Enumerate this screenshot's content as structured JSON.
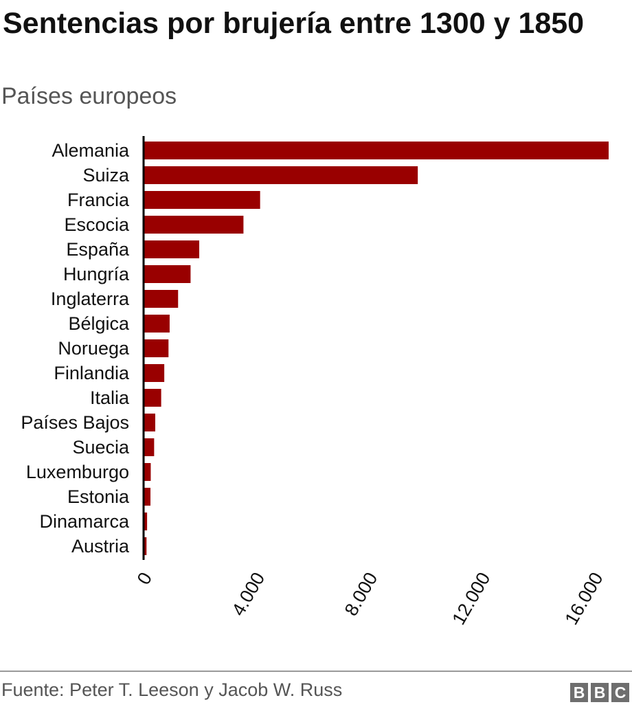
{
  "title": "Sentencias por brujería entre 1300 y 1850",
  "subtitle": "Países europeos",
  "source": "Fuente: Peter T. Leeson y Jacob W. Russ",
  "logo": [
    "B",
    "B",
    "C"
  ],
  "colors": {
    "bar": "#990000",
    "axis": "#000000"
  },
  "chart_data": {
    "type": "bar",
    "orientation": "horizontal",
    "categories": [
      "Alemania",
      "Suiza",
      "Francia",
      "Escocia",
      "España",
      "Hungría",
      "Inglaterra",
      "Bélgica",
      "Noruega",
      "Finlandia",
      "Italia",
      "Países Bajos",
      "Suecia",
      "Luxemburgo",
      "Estonia",
      "Dinamarca",
      "Austria"
    ],
    "values": [
      16474,
      9703,
      4110,
      3519,
      1950,
      1643,
      1200,
      900,
      860,
      710,
      600,
      390,
      350,
      230,
      220,
      100,
      80
    ],
    "xlim": [
      0,
      16474
    ],
    "ticks": [
      0,
      4000,
      8000,
      12000,
      16000
    ],
    "tick_labels": [
      "0",
      "4.000",
      "8.000",
      "12.000",
      "16.000"
    ],
    "grid": false,
    "legend": "none"
  }
}
